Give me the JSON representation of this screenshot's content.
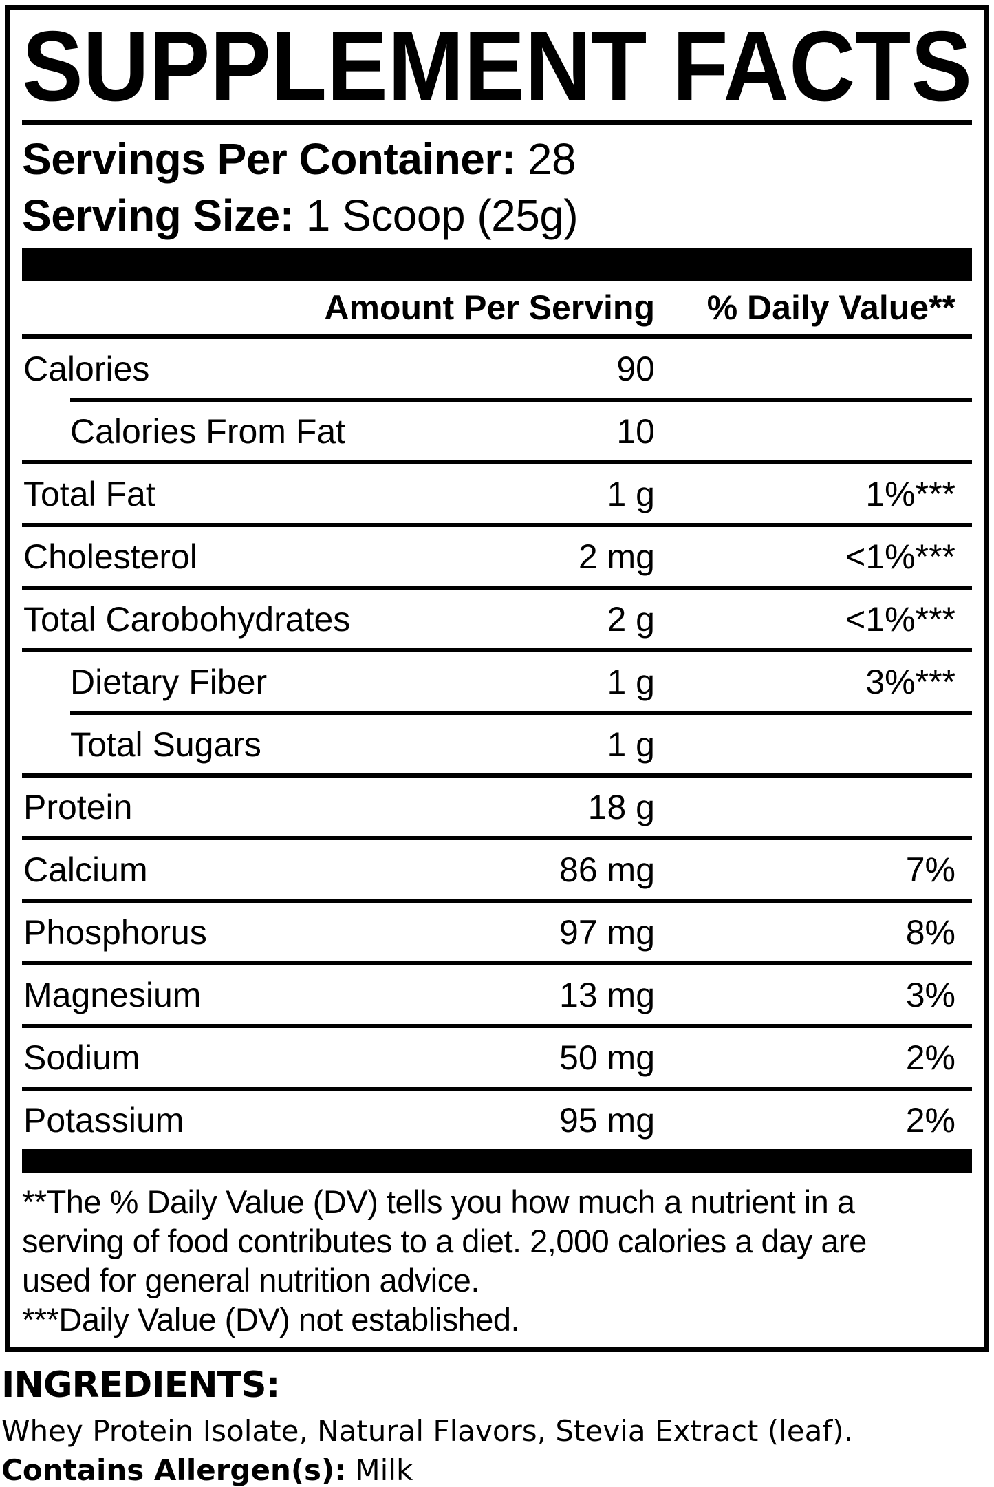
{
  "colors": {
    "ink": "#000000",
    "paper": "#ffffff"
  },
  "panel": {
    "title": "SUPPLEMENT FACTS",
    "servings_per_container": {
      "label": "Servings Per Container:",
      "value": "28"
    },
    "serving_size": {
      "label": "Serving Size:",
      "value": "1 Scoop (25g)"
    },
    "columns": {
      "amount": "Amount Per Serving",
      "daily_value": "% Daily Value**"
    },
    "rows": [
      {
        "label": "Calories",
        "amount": "90",
        "dv": ""
      },
      {
        "label": "Calories From Fat",
        "amount": "10",
        "dv": ""
      },
      {
        "label": "Total Fat",
        "amount": "1 g",
        "dv": "1%***"
      },
      {
        "label": "Cholesterol",
        "amount": "2 mg",
        "dv": "<1%***"
      },
      {
        "label": "Total Carobohydrates",
        "amount": "2 g",
        "dv": "<1%***"
      },
      {
        "label": "Dietary Fiber",
        "amount": "1 g",
        "dv": "3%***"
      },
      {
        "label": "Total Sugars",
        "amount": "1 g",
        "dv": ""
      },
      {
        "label": "Protein",
        "amount": "18 g",
        "dv": ""
      },
      {
        "label": "Calcium",
        "amount": "86 mg",
        "dv": "7%"
      },
      {
        "label": "Phosphorus",
        "amount": "97 mg",
        "dv": "8%"
      },
      {
        "label": "Magnesium",
        "amount": "13 mg",
        "dv": "3%"
      },
      {
        "label": "Sodium",
        "amount": "50 mg",
        "dv": "2%"
      },
      {
        "label": "Potassium",
        "amount": "95 mg",
        "dv": "2%"
      }
    ],
    "footnote": {
      "lines": [
        "**The % Daily Value (DV) tells you how much a nutrient in a",
        "serving of food contributes to a diet. 2,000 calories a day are",
        "used for general nutrition advice.",
        "***Daily Value (DV) not established."
      ]
    }
  },
  "ingredients": {
    "heading": "INGREDIENTS:",
    "list": "Whey Protein Isolate, Natural Flavors, Stevia Extract (leaf).",
    "allergen_label": "Contains Allergen(s):",
    "allergen_value": "Milk"
  }
}
